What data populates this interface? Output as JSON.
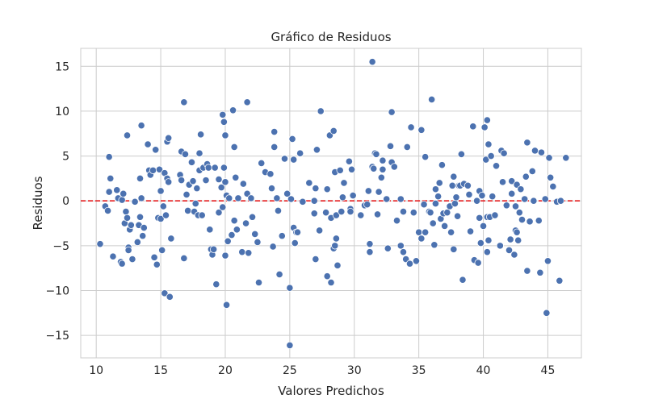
{
  "chart_data": {
    "type": "scatter",
    "title": "Gráfico de Residuos",
    "xlabel": "Valores Predichos",
    "ylabel": "Residuos",
    "xlim": [
      8.8,
      47.6
    ],
    "ylim": [
      -17.5,
      17.0
    ],
    "xticks": [
      10,
      15,
      20,
      25,
      30,
      35,
      40,
      45
    ],
    "yticks": [
      -15,
      -10,
      -5,
      0,
      5,
      10,
      15
    ],
    "grid": true,
    "reference_line": {
      "y": 0,
      "color": "#e41a1c",
      "style": "dashed"
    },
    "point_color": "#4c72b0",
    "points": [
      [
        10.3,
        -4.8
      ],
      [
        10.7,
        -0.6
      ],
      [
        10.9,
        -1.1
      ],
      [
        11.0,
        1.0
      ],
      [
        11.0,
        4.9
      ],
      [
        11.1,
        2.5
      ],
      [
        11.3,
        -6.2
      ],
      [
        11.6,
        1.2
      ],
      [
        11.7,
        0.3
      ],
      [
        11.9,
        -6.8
      ],
      [
        12.0,
        -7.0
      ],
      [
        12.0,
        0.1
      ],
      [
        12.1,
        0.8
      ],
      [
        12.2,
        -2.5
      ],
      [
        12.3,
        -1.2
      ],
      [
        12.4,
        7.3
      ],
      [
        12.4,
        -1.9
      ],
      [
        12.5,
        -5.2
      ],
      [
        12.5,
        -5.5
      ],
      [
        12.6,
        -3.2
      ],
      [
        12.7,
        -2.7
      ],
      [
        12.8,
        -6.5
      ],
      [
        13.0,
        -0.1
      ],
      [
        13.2,
        -4.6
      ],
      [
        13.3,
        -2.7
      ],
      [
        13.4,
        -1.8
      ],
      [
        13.4,
        2.5
      ],
      [
        13.5,
        8.4
      ],
      [
        13.5,
        0.3
      ],
      [
        13.6,
        -3.9
      ],
      [
        13.7,
        -3.0
      ],
      [
        14.0,
        6.3
      ],
      [
        14.1,
        3.4
      ],
      [
        14.2,
        2.9
      ],
      [
        14.4,
        3.4
      ],
      [
        14.5,
        -6.3
      ],
      [
        14.6,
        5.7
      ],
      [
        14.7,
        -7.1
      ],
      [
        14.8,
        -1.9
      ],
      [
        14.9,
        3.5
      ],
      [
        15.0,
        1.1
      ],
      [
        15.0,
        -2.0
      ],
      [
        15.1,
        -5.5
      ],
      [
        15.2,
        -0.6
      ],
      [
        15.3,
        3.1
      ],
      [
        15.3,
        -10.3
      ],
      [
        15.4,
        -1.6
      ],
      [
        15.5,
        6.6
      ],
      [
        15.5,
        2.5
      ],
      [
        15.6,
        2.1
      ],
      [
        15.6,
        7.0
      ],
      [
        15.7,
        -10.7
      ],
      [
        15.8,
        -4.2
      ],
      [
        16.5,
        2.9
      ],
      [
        16.6,
        5.5
      ],
      [
        16.6,
        2.3
      ],
      [
        16.8,
        11.0
      ],
      [
        16.8,
        -6.4
      ],
      [
        16.9,
        5.2
      ],
      [
        17.0,
        0.7
      ],
      [
        17.1,
        -1.1
      ],
      [
        17.2,
        1.8
      ],
      [
        17.4,
        4.3
      ],
      [
        17.5,
        2.2
      ],
      [
        17.6,
        -1.2
      ],
      [
        17.7,
        -0.3
      ],
      [
        17.8,
        1.4
      ],
      [
        17.9,
        -1.6
      ],
      [
        18.0,
        3.4
      ],
      [
        18.0,
        5.3
      ],
      [
        18.1,
        7.4
      ],
      [
        18.2,
        -1.6
      ],
      [
        18.3,
        3.7
      ],
      [
        18.5,
        2.3
      ],
      [
        18.6,
        4.1
      ],
      [
        18.7,
        3.7
      ],
      [
        18.8,
        -3.2
      ],
      [
        18.9,
        -5.4
      ],
      [
        19.0,
        -6.0
      ],
      [
        19.1,
        -5.4
      ],
      [
        19.2,
        3.7
      ],
      [
        19.3,
        -9.3
      ],
      [
        19.5,
        2.4
      ],
      [
        19.5,
        -1.3
      ],
      [
        19.7,
        1.5
      ],
      [
        19.8,
        9.6
      ],
      [
        19.8,
        -0.7
      ],
      [
        19.9,
        3.7
      ],
      [
        19.9,
        8.8
      ],
      [
        20.0,
        7.3
      ],
      [
        20.0,
        2.1
      ],
      [
        20.0,
        -6.1
      ],
      [
        20.1,
        0.6
      ],
      [
        20.1,
        -11.6
      ],
      [
        20.2,
        -4.5
      ],
      [
        20.3,
        0.3
      ],
      [
        20.5,
        -3.8
      ],
      [
        20.6,
        10.1
      ],
      [
        20.7,
        -2.2
      ],
      [
        20.7,
        6.0
      ],
      [
        20.8,
        2.6
      ],
      [
        20.9,
        -3.2
      ],
      [
        21.0,
        0.3
      ],
      [
        21.3,
        -5.7
      ],
      [
        21.4,
        1.9
      ],
      [
        21.6,
        -2.5
      ],
      [
        21.7,
        0.8
      ],
      [
        21.7,
        11.0
      ],
      [
        21.8,
        -5.8
      ],
      [
        22.0,
        0.3
      ],
      [
        22.1,
        -1.8
      ],
      [
        22.3,
        -3.7
      ],
      [
        22.5,
        -4.6
      ],
      [
        22.6,
        -9.1
      ],
      [
        22.8,
        4.2
      ],
      [
        23.1,
        3.2
      ],
      [
        23.5,
        3.0
      ],
      [
        23.6,
        1.4
      ],
      [
        23.7,
        -5.1
      ],
      [
        23.8,
        7.7
      ],
      [
        23.8,
        6.0
      ],
      [
        24.0,
        0.3
      ],
      [
        24.1,
        -1.1
      ],
      [
        24.2,
        -8.2
      ],
      [
        24.4,
        -3.9
      ],
      [
        24.6,
        4.7
      ],
      [
        24.8,
        0.8
      ],
      [
        25.0,
        -9.7
      ],
      [
        25.0,
        -16.1
      ],
      [
        25.1,
        0.2
      ],
      [
        25.2,
        6.9
      ],
      [
        25.3,
        -3.0
      ],
      [
        25.3,
        4.6
      ],
      [
        25.4,
        -4.7
      ],
      [
        25.5,
        -3.5
      ],
      [
        25.6,
        -3.5
      ],
      [
        25.8,
        5.3
      ],
      [
        26.0,
        -0.1
      ],
      [
        26.5,
        2.0
      ],
      [
        26.9,
        -1.4
      ],
      [
        26.9,
        0.0
      ],
      [
        27.0,
        1.4
      ],
      [
        27.0,
        -6.5
      ],
      [
        27.1,
        5.7
      ],
      [
        27.3,
        -3.3
      ],
      [
        27.4,
        10.0
      ],
      [
        27.8,
        -1.3
      ],
      [
        27.9,
        1.3
      ],
      [
        27.9,
        -8.4
      ],
      [
        28.1,
        7.3
      ],
      [
        28.2,
        -1.9
      ],
      [
        28.2,
        -9.1
      ],
      [
        28.4,
        7.8
      ],
      [
        28.4,
        -5.3
      ],
      [
        28.5,
        3.2
      ],
      [
        28.5,
        -5.0
      ],
      [
        28.6,
        -1.6
      ],
      [
        28.6,
        -4.2
      ],
      [
        28.7,
        -7.2
      ],
      [
        28.9,
        3.4
      ],
      [
        29.0,
        -1.2
      ],
      [
        29.1,
        0.4
      ],
      [
        29.2,
        2.0
      ],
      [
        29.6,
        4.4
      ],
      [
        29.7,
        -0.9
      ],
      [
        29.7,
        -1.2
      ],
      [
        29.8,
        3.5
      ],
      [
        29.9,
        0.6
      ],
      [
        30.5,
        -1.6
      ],
      [
        30.8,
        -0.5
      ],
      [
        31.0,
        -0.4
      ],
      [
        31.1,
        1.1
      ],
      [
        31.2,
        -4.8
      ],
      [
        31.2,
        -5.7
      ],
      [
        31.4,
        15.5
      ],
      [
        31.4,
        3.8
      ],
      [
        31.5,
        3.6
      ],
      [
        31.6,
        5.3
      ],
      [
        31.7,
        5.2
      ],
      [
        31.8,
        -1.5
      ],
      [
        31.9,
        1.0
      ],
      [
        32.1,
        2.6
      ],
      [
        32.2,
        3.5
      ],
      [
        32.2,
        4.5
      ],
      [
        32.5,
        0.2
      ],
      [
        32.6,
        -5.3
      ],
      [
        32.8,
        6.1
      ],
      [
        32.9,
        9.9
      ],
      [
        32.9,
        4.3
      ],
      [
        33.1,
        3.8
      ],
      [
        33.3,
        -2.2
      ],
      [
        33.6,
        -5.0
      ],
      [
        33.6,
        0.2
      ],
      [
        33.8,
        -5.7
      ],
      [
        33.8,
        -1.2
      ],
      [
        34.0,
        -6.5
      ],
      [
        34.1,
        6.0
      ],
      [
        34.3,
        -7.0
      ],
      [
        34.4,
        8.2
      ],
      [
        34.6,
        -1.3
      ],
      [
        34.8,
        -6.7
      ],
      [
        35.0,
        -3.5
      ],
      [
        35.2,
        7.9
      ],
      [
        35.2,
        -4.2
      ],
      [
        35.4,
        -0.4
      ],
      [
        35.5,
        -3.5
      ],
      [
        35.5,
        4.9
      ],
      [
        35.8,
        -1.2
      ],
      [
        35.9,
        -1.3
      ],
      [
        36.0,
        11.3
      ],
      [
        36.1,
        -2.5
      ],
      [
        36.2,
        -4.9
      ],
      [
        36.3,
        1.3
      ],
      [
        36.3,
        -0.3
      ],
      [
        36.5,
        0.5
      ],
      [
        36.6,
        2.0
      ],
      [
        36.7,
        -2.0
      ],
      [
        36.8,
        4.0
      ],
      [
        36.9,
        -1.4
      ],
      [
        37.0,
        -2.8
      ],
      [
        37.2,
        -1.3
      ],
      [
        37.4,
        -0.6
      ],
      [
        37.5,
        -3.5
      ],
      [
        37.6,
        1.7
      ],
      [
        37.7,
        -5.4
      ],
      [
        37.7,
        2.7
      ],
      [
        37.8,
        -0.3
      ],
      [
        37.9,
        0.4
      ],
      [
        38.0,
        -1.7
      ],
      [
        38.1,
        1.7
      ],
      [
        38.2,
        1.7
      ],
      [
        38.3,
        5.2
      ],
      [
        38.4,
        -8.8
      ],
      [
        38.5,
        1.9
      ],
      [
        38.8,
        1.7
      ],
      [
        38.9,
        0.7
      ],
      [
        39.0,
        -3.4
      ],
      [
        39.2,
        8.3
      ],
      [
        39.3,
        -6.6
      ],
      [
        39.5,
        0.0
      ],
      [
        39.6,
        -6.9
      ],
      [
        39.7,
        1.1
      ],
      [
        39.7,
        -1.9
      ],
      [
        39.8,
        -4.7
      ],
      [
        39.9,
        0.6
      ],
      [
        40.0,
        -2.8
      ],
      [
        40.1,
        8.2
      ],
      [
        40.2,
        4.6
      ],
      [
        40.3,
        -5.7
      ],
      [
        40.3,
        -1.8
      ],
      [
        40.3,
        9.0
      ],
      [
        40.4,
        6.3
      ],
      [
        40.4,
        -4.4
      ],
      [
        40.5,
        -1.8
      ],
      [
        40.6,
        5.0
      ],
      [
        40.7,
        0.5
      ],
      [
        40.9,
        -1.6
      ],
      [
        41.0,
        3.9
      ],
      [
        41.3,
        -5.0
      ],
      [
        41.4,
        5.6
      ],
      [
        41.5,
        2.1
      ],
      [
        41.6,
        5.3
      ],
      [
        41.8,
        -0.5
      ],
      [
        42.0,
        -5.5
      ],
      [
        42.1,
        -4.3
      ],
      [
        42.2,
        2.2
      ],
      [
        42.2,
        0.8
      ],
      [
        42.4,
        -6.0
      ],
      [
        42.5,
        -3.3
      ],
      [
        42.5,
        -0.6
      ],
      [
        42.6,
        1.8
      ],
      [
        42.6,
        -3.5
      ],
      [
        42.7,
        -4.4
      ],
      [
        42.8,
        -1.3
      ],
      [
        42.9,
        1.3
      ],
      [
        43.0,
        -2.1
      ],
      [
        43.2,
        0.2
      ],
      [
        43.3,
        2.7
      ],
      [
        43.4,
        6.5
      ],
      [
        43.4,
        -7.8
      ],
      [
        43.6,
        -2.3
      ],
      [
        43.8,
        3.3
      ],
      [
        43.9,
        0.0
      ],
      [
        44.0,
        5.6
      ],
      [
        44.3,
        -2.2
      ],
      [
        44.4,
        -8.0
      ],
      [
        44.5,
        5.4
      ],
      [
        44.8,
        0.2
      ],
      [
        44.9,
        -12.5
      ],
      [
        45.0,
        -6.7
      ],
      [
        45.1,
        4.8
      ],
      [
        45.2,
        2.6
      ],
      [
        45.4,
        1.6
      ],
      [
        45.7,
        -0.1
      ],
      [
        45.9,
        -8.9
      ],
      [
        46.0,
        0.0
      ],
      [
        46.4,
        4.8
      ]
    ]
  }
}
